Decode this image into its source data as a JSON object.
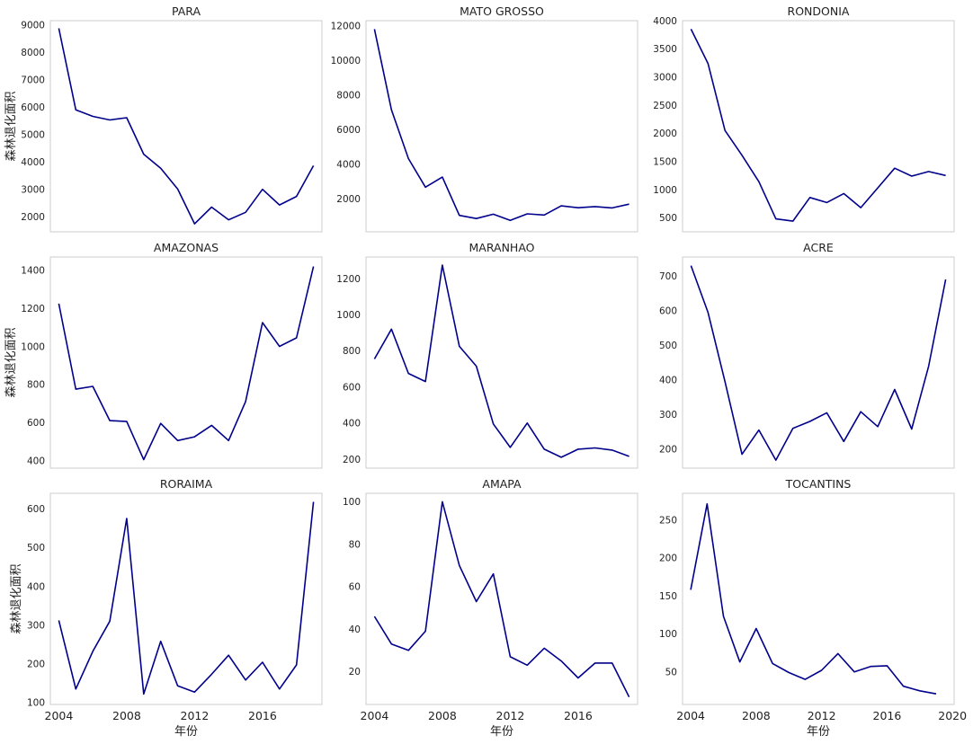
{
  "figure": {
    "line_color": "#00008b",
    "x_label": "年份",
    "y_label": "森林退化面积"
  },
  "chart_data": [
    {
      "type": "line",
      "title": "PARA",
      "xlim": [
        2003.5,
        2019.5
      ],
      "ylim": [
        1450,
        9150
      ],
      "yticks": [
        2000,
        3000,
        4000,
        5000,
        6000,
        7000,
        8000,
        9000
      ],
      "show_xticks": false,
      "show_ylabel": true,
      "x": [
        2004,
        2005,
        2006,
        2007,
        2008,
        2009,
        2010,
        2011,
        2012,
        2013,
        2014,
        2015,
        2016,
        2017,
        2018,
        2019
      ],
      "values": [
        8870,
        5900,
        5660,
        5530,
        5610,
        4280,
        3770,
        3010,
        1740,
        2350,
        1890,
        2160,
        3000,
        2430,
        2740,
        3860
      ]
    },
    {
      "type": "line",
      "title": "MATO GROSSO",
      "xlim": [
        2003.5,
        2019.5
      ],
      "ylim": [
        100,
        12300
      ],
      "yticks": [
        2000,
        4000,
        6000,
        8000,
        10000,
        12000
      ],
      "show_xticks": false,
      "show_ylabel": false,
      "x": [
        2004,
        2005,
        2006,
        2007,
        2008,
        2009,
        2010,
        2011,
        2012,
        2013,
        2014,
        2015,
        2016,
        2017,
        2018,
        2019
      ],
      "values": [
        11810,
        7150,
        4330,
        2680,
        3260,
        1050,
        870,
        1120,
        760,
        1140,
        1070,
        1600,
        1490,
        1560,
        1480,
        1700
      ]
    },
    {
      "type": "line",
      "title": "RONDONIA",
      "xlim": [
        2003.5,
        2019.5
      ],
      "ylim": [
        250,
        4000
      ],
      "yticks": [
        500,
        1000,
        1500,
        2000,
        2500,
        3000,
        3500,
        4000
      ],
      "show_xticks": false,
      "show_ylabel": false,
      "x": [
        2004,
        2005,
        2006,
        2007,
        2008,
        2009,
        2010,
        2011,
        2012,
        2013,
        2014,
        2015,
        2016,
        2017,
        2018,
        2019
      ],
      "values": [
        3850,
        3240,
        2050,
        1610,
        1140,
        480,
        440,
        860,
        770,
        930,
        680,
        1030,
        1380,
        1240,
        1320,
        1250
      ]
    },
    {
      "type": "line",
      "title": "AMAZONAS",
      "xlim": [
        2003.5,
        2019.5
      ],
      "ylim": [
        360,
        1470
      ],
      "yticks": [
        400,
        600,
        800,
        1000,
        1200,
        1400
      ],
      "show_xticks": false,
      "show_ylabel": true,
      "x": [
        2004,
        2005,
        2006,
        2007,
        2008,
        2009,
        2010,
        2011,
        2012,
        2013,
        2014,
        2015,
        2016,
        2017,
        2018,
        2019
      ],
      "values": [
        1225,
        775,
        790,
        610,
        605,
        405,
        595,
        505,
        525,
        585,
        505,
        710,
        1125,
        1000,
        1045,
        1420
      ]
    },
    {
      "type": "line",
      "title": "MARANHAO",
      "xlim": [
        2003.5,
        2019.5
      ],
      "ylim": [
        150,
        1320
      ],
      "yticks": [
        200,
        400,
        600,
        800,
        1000,
        1200
      ],
      "show_xticks": false,
      "show_ylabel": false,
      "x": [
        2004,
        2005,
        2006,
        2007,
        2008,
        2009,
        2010,
        2011,
        2012,
        2013,
        2014,
        2015,
        2016,
        2017,
        2018,
        2019
      ],
      "values": [
        755,
        920,
        675,
        630,
        1275,
        825,
        715,
        395,
        265,
        400,
        255,
        210,
        255,
        262,
        250,
        215
      ]
    },
    {
      "type": "line",
      "title": "ACRE",
      "xlim": [
        2003.5,
        2019.5
      ],
      "ylim": [
        145,
        755
      ],
      "yticks": [
        200,
        300,
        400,
        500,
        600,
        700
      ],
      "show_xticks": false,
      "show_ylabel": false,
      "x": [
        2004,
        2005,
        2006,
        2007,
        2008,
        2009,
        2010,
        2011,
        2012,
        2013,
        2014,
        2015,
        2016,
        2017,
        2018,
        2019
      ],
      "values": [
        730,
        595,
        395,
        185,
        255,
        168,
        260,
        280,
        305,
        222,
        308,
        265,
        372,
        258,
        440,
        690
      ]
    },
    {
      "type": "line",
      "title": "RORAIMA",
      "xlim": [
        2003.5,
        2019.5
      ],
      "ylim": [
        95,
        640
      ],
      "yticks": [
        100,
        200,
        300,
        400,
        500,
        600
      ],
      "show_xticks": true,
      "show_ylabel": true,
      "x": [
        2004,
        2005,
        2006,
        2007,
        2008,
        2009,
        2010,
        2011,
        2012,
        2013,
        2014,
        2015,
        2016,
        2017,
        2018,
        2019
      ],
      "values": [
        312,
        135,
        232,
        310,
        575,
        122,
        258,
        143,
        127,
        173,
        222,
        158,
        204,
        135,
        197,
        618
      ]
    },
    {
      "type": "line",
      "title": "AMAPA",
      "xlim": [
        2003.5,
        2019.5
      ],
      "ylim": [
        4.5,
        104
      ],
      "yticks": [
        20,
        40,
        60,
        80,
        100
      ],
      "show_xticks": true,
      "show_ylabel": false,
      "x": [
        2004,
        2005,
        2006,
        2007,
        2008,
        2009,
        2010,
        2011,
        2012,
        2013,
        2014,
        2015,
        2016,
        2017,
        2018,
        2019
      ],
      "values": [
        46,
        33,
        30,
        39,
        100,
        70,
        53,
        66,
        27,
        23,
        31,
        25,
        17,
        24,
        24,
        8
      ]
    },
    {
      "type": "line",
      "title": "TOCANTINS",
      "xlim": [
        2003.5,
        2020.1
      ],
      "ylim": [
        7,
        285
      ],
      "yticks": [
        50,
        100,
        150,
        200,
        250
      ],
      "xticks_extra": [
        2020
      ],
      "show_xticks": true,
      "show_ylabel": false,
      "x": [
        2004,
        2005,
        2006,
        2007,
        2008,
        2009,
        2010,
        2011,
        2012,
        2013,
        2014,
        2015,
        2016,
        2017,
        2018,
        2019
      ],
      "values": [
        158,
        271,
        123,
        63,
        107,
        61,
        49,
        40,
        52,
        74,
        50,
        57,
        58,
        31,
        25,
        21
      ]
    }
  ],
  "xticks": [
    2004,
    2008,
    2012,
    2016
  ]
}
